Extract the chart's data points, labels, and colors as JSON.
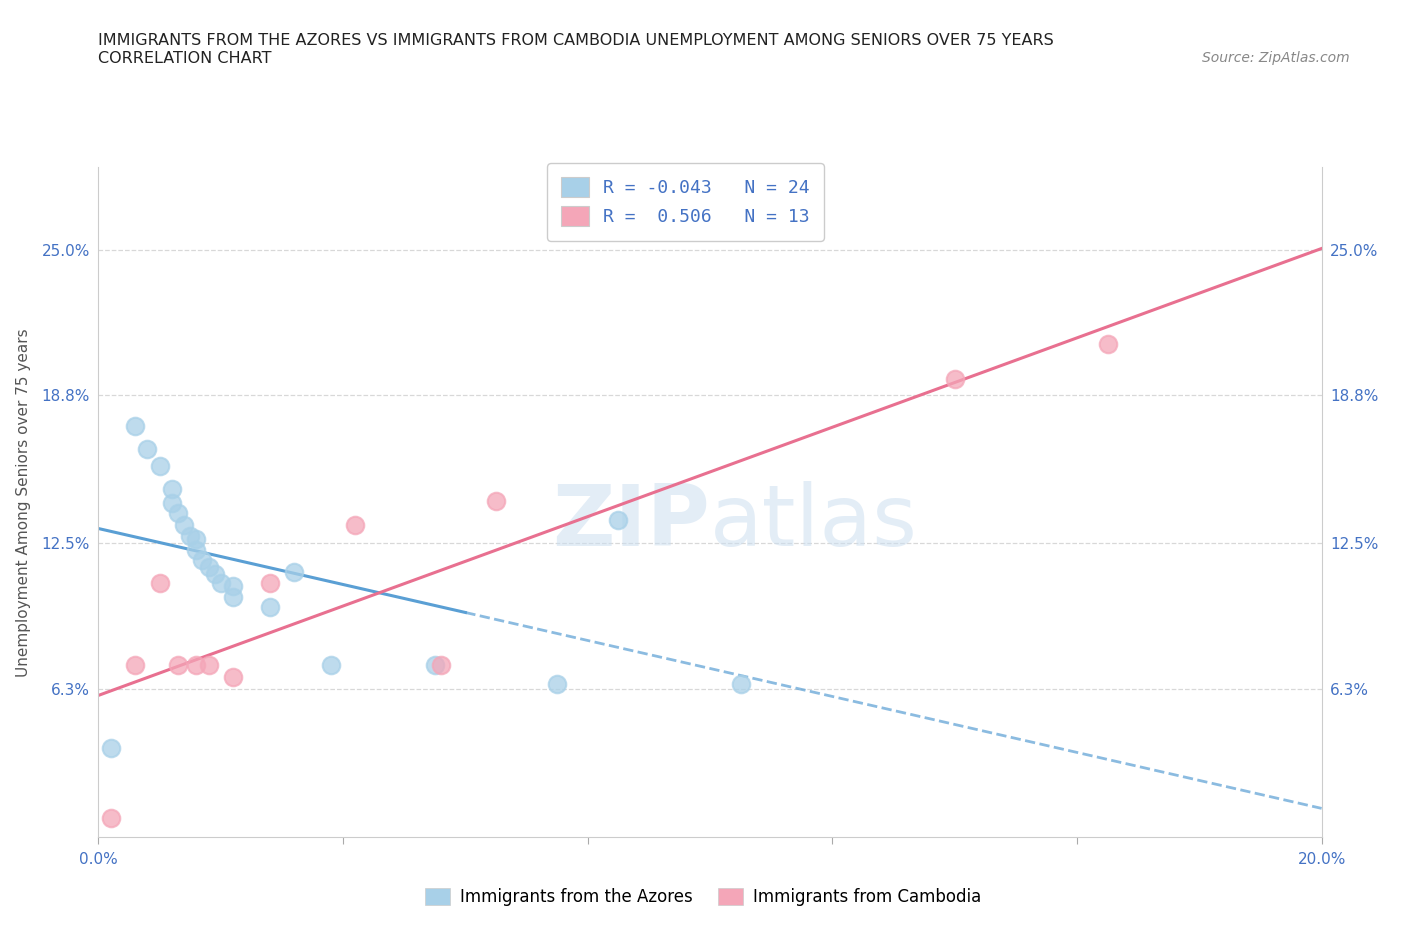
{
  "title_line1": "IMMIGRANTS FROM THE AZORES VS IMMIGRANTS FROM CAMBODIA UNEMPLOYMENT AMONG SENIORS OVER 75 YEARS",
  "title_line2": "CORRELATION CHART",
  "source_text": "Source: ZipAtlas.com",
  "ylabel": "Unemployment Among Seniors over 75 years",
  "x_min": 0.0,
  "x_max": 0.2,
  "y_min": 0.0,
  "y_max": 0.285,
  "x_ticks": [
    0.0,
    0.04,
    0.08,
    0.12,
    0.16,
    0.2
  ],
  "x_tick_labels": [
    "0.0%",
    "",
    "",
    "",
    "",
    "20.0%"
  ],
  "y_ticks": [
    0.063,
    0.125,
    0.188,
    0.25
  ],
  "y_tick_labels": [
    "6.3%",
    "12.5%",
    "18.8%",
    "25.0%"
  ],
  "azores_color": "#a8d0e8",
  "cambodia_color": "#f4a6b8",
  "azores_line_color": "#5a9fd4",
  "cambodia_line_color": "#e87090",
  "legend_azores_R": "-0.043",
  "legend_azores_N": "24",
  "legend_cambodia_R": "0.506",
  "legend_cambodia_N": "13",
  "watermark_zip": "ZIP",
  "watermark_atlas": "atlas",
  "azores_x": [
    0.002,
    0.006,
    0.008,
    0.01,
    0.012,
    0.012,
    0.013,
    0.014,
    0.015,
    0.016,
    0.016,
    0.017,
    0.018,
    0.019,
    0.02,
    0.022,
    0.022,
    0.028,
    0.032,
    0.038,
    0.055,
    0.075,
    0.085,
    0.105
  ],
  "azores_y": [
    0.038,
    0.175,
    0.165,
    0.158,
    0.148,
    0.142,
    0.138,
    0.133,
    0.128,
    0.127,
    0.122,
    0.118,
    0.115,
    0.112,
    0.108,
    0.107,
    0.102,
    0.098,
    0.113,
    0.073,
    0.073,
    0.065,
    0.135,
    0.065
  ],
  "cambodia_x": [
    0.002,
    0.006,
    0.01,
    0.013,
    0.016,
    0.018,
    0.022,
    0.028,
    0.042,
    0.056,
    0.065,
    0.14,
    0.165
  ],
  "cambodia_y": [
    0.008,
    0.073,
    0.108,
    0.073,
    0.073,
    0.073,
    0.068,
    0.108,
    0.133,
    0.073,
    0.143,
    0.195,
    0.21
  ],
  "background_color": "#ffffff",
  "grid_color": "#d8d8d8"
}
